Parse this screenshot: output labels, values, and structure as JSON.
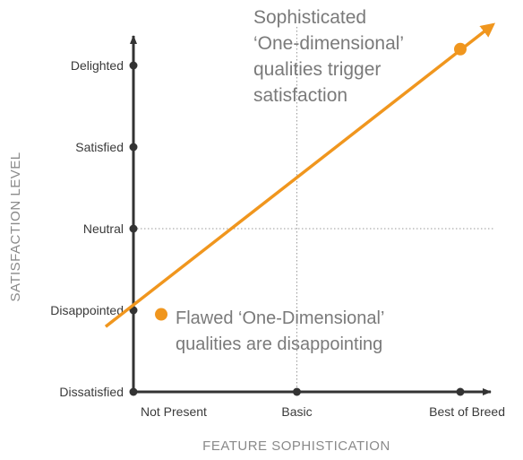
{
  "chart_data": {
    "type": "line",
    "title": "",
    "xlabel": "FEATURE SOPHISTICATION",
    "ylabel": "SATISFACTION LEVEL",
    "x_categories": [
      "Not Present",
      "Basic",
      "Best of Breed"
    ],
    "y_categories": [
      "Dissatisfied",
      "Disappointed",
      "Neutral",
      "Satisfied",
      "Delighted"
    ],
    "reference_lines": {
      "x": "Basic",
      "y": "Neutral",
      "style": "dotted"
    },
    "series": [
      {
        "color": "#f0961e",
        "line": {
          "start": [
            -0.17,
            0.8
          ],
          "end": [
            2.2,
            4.5
          ]
        },
        "points": [
          {
            "x": 0.17,
            "y": 0.95
          },
          {
            "x": 2.0,
            "y": 4.2
          }
        ]
      }
    ],
    "annotations": [
      {
        "lines": [
          "Sophisticated",
          "‘One-dimensional’",
          "qualities trigger",
          "satisfaction"
        ]
      },
      {
        "lines": [
          "Flawed ‘One-Dimensional’",
          "qualities are disappointing"
        ]
      }
    ],
    "colors": {
      "axis": "#333333",
      "line": "#f0961e",
      "reference": "#9a9a9a",
      "text": "#3a3a3a",
      "muted": "#8a8a8a"
    }
  }
}
